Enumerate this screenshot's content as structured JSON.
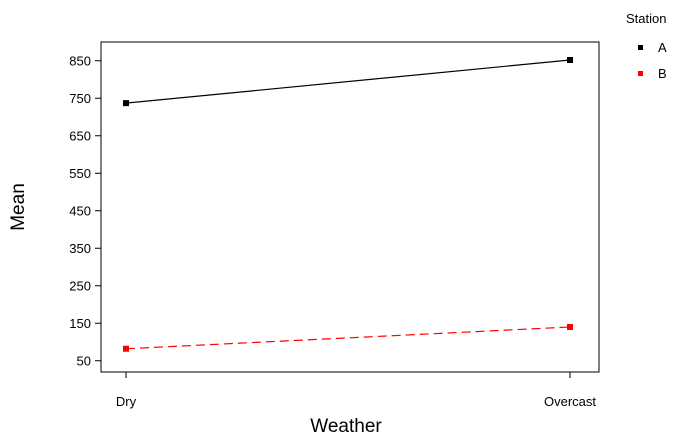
{
  "chart_data": {
    "type": "line",
    "xlabel": "Weather",
    "ylabel": "Mean",
    "categories": [
      "Dry",
      "Overcast"
    ],
    "yticks": [
      50,
      150,
      250,
      350,
      450,
      550,
      650,
      750,
      850
    ],
    "ylim": [
      20,
      900
    ],
    "grid": false,
    "legend": {
      "title": "Station",
      "placement": "top-right, outside plot"
    },
    "series": [
      {
        "name": "A",
        "values": [
          737,
          852
        ],
        "color": "#000000",
        "line_style": "solid",
        "marker": "square"
      },
      {
        "name": "B",
        "values": [
          82,
          140
        ],
        "color": "#ff0000",
        "line_style": "dashed",
        "marker": "square"
      }
    ]
  }
}
